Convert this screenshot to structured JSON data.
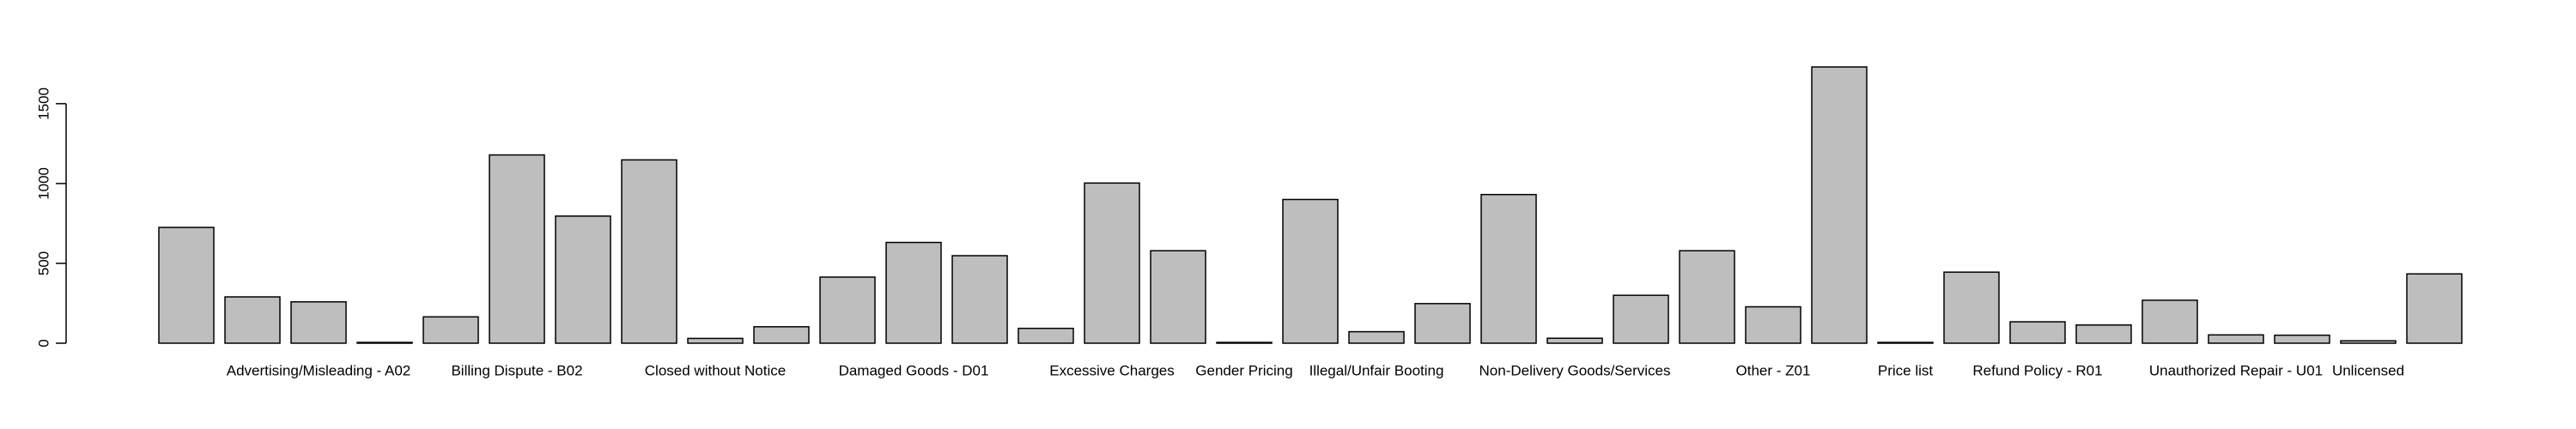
{
  "chart_data": {
    "type": "bar",
    "categories": [
      null,
      null,
      "Advertising/Misleading - A02",
      null,
      null,
      "Billing Dispute - B02",
      null,
      null,
      "Closed without Notice",
      null,
      null,
      "Damaged Goods - D01",
      null,
      null,
      "Excessive Charges",
      null,
      "Gender Pricing",
      null,
      "Illegal/Unfair Booting",
      null,
      null,
      "Non-Delivery Goods/Services",
      null,
      null,
      "Other - Z01",
      null,
      "Price list",
      null,
      "Refund Policy - R01",
      null,
      null,
      "Unauthorized Repair - U01",
      null,
      "Unlicensed",
      null
    ],
    "values": [
      725,
      290,
      259,
      5,
      165,
      1179,
      796,
      1148,
      30,
      103,
      414,
      631,
      548,
      93,
      1003,
      579,
      5,
      900,
      72,
      248,
      931,
      31,
      300,
      579,
      228,
      1730,
      5,
      445,
      134,
      114,
      269,
      52,
      50,
      15,
      434
    ],
    "color": "#bebebe",
    "ylim": [
      0,
      1800
    ],
    "yticks": [
      0,
      500,
      1000,
      1500
    ],
    "grid": false
  }
}
